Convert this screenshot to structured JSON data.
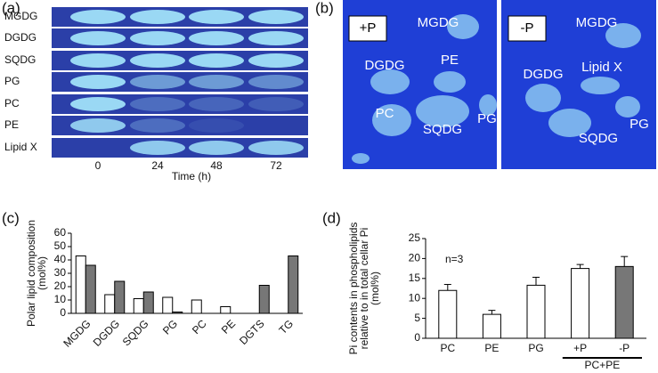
{
  "panel_a": {
    "label": "(a)",
    "rows": [
      "MGDG",
      "DGDG",
      "SQDG",
      "PG",
      "PC",
      "PE",
      "Lipid X"
    ],
    "times": [
      "0",
      "24",
      "48",
      "72"
    ],
    "xlabel": "Time (h)"
  },
  "panel_b": {
    "label": "(b)",
    "images": [
      {
        "tag": "+P",
        "spots": [
          "MGDG",
          "DGDG",
          "PE",
          "PC",
          "SQDG",
          "PG"
        ]
      },
      {
        "tag": "-P",
        "spots": [
          "MGDG",
          "DGDG",
          "Lipid X",
          "SQDG",
          "PG"
        ]
      }
    ]
  },
  "chart_data": [
    {
      "type": "bar",
      "panel_label": "(c)",
      "ylabel": [
        "Polar lipid composition",
        "(mol%)"
      ],
      "categories": [
        "MGDG",
        "DGDG",
        "SQDG",
        "PG",
        "PC",
        "PE",
        "DGTS",
        "TG"
      ],
      "series": [
        {
          "color": "#ffffff",
          "values": [
            43,
            14,
            11,
            12,
            10,
            5,
            null,
            null
          ]
        },
        {
          "color": "#777777",
          "values": [
            36,
            24,
            16,
            1,
            null,
            null,
            21,
            43
          ]
        }
      ],
      "ylim": [
        0,
        60
      ],
      "yticks": [
        0,
        10,
        20,
        30,
        40,
        50,
        60
      ]
    },
    {
      "type": "bar",
      "panel_label": "(d)",
      "ylabel": [
        "Pi contents in phospholipids",
        "relative to in total cellar Pi",
        "(mol%)"
      ],
      "categories": [
        "PC",
        "PE",
        "PG",
        "+P",
        "-P"
      ],
      "values": [
        12,
        6,
        13.3,
        17.5,
        18
      ],
      "errors": [
        1.5,
        1,
        2,
        1,
        2.5
      ],
      "colors": [
        "#ffffff",
        "#ffffff",
        "#ffffff",
        "#ffffff",
        "#777777"
      ],
      "annotation": "n=3",
      "group_label": "PC+PE",
      "ylim": [
        0,
        25
      ],
      "yticks": [
        0,
        5,
        10,
        15,
        20,
        25
      ]
    }
  ]
}
